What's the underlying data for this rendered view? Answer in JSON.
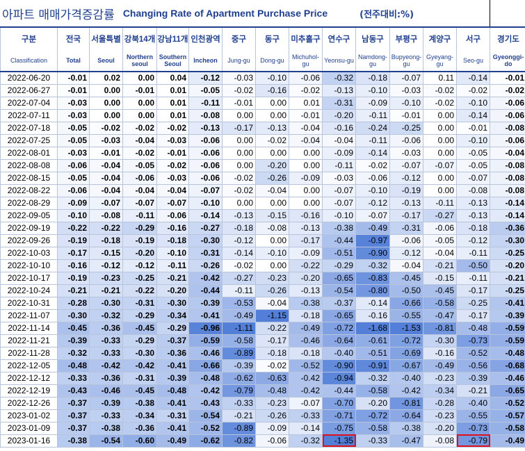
{
  "title": {
    "korean": "아파트 매매가격증감률",
    "english": "Changing Rate of Apartment Purchase Price",
    "unit": "(전주대비:%)"
  },
  "columns": [
    {
      "ko": "구분",
      "en": "Classification"
    },
    {
      "ko": "전국",
      "en": "Total"
    },
    {
      "ko": "서울특별",
      "en": "Seoul"
    },
    {
      "ko": "강북14개",
      "en": "Northern seoul"
    },
    {
      "ko": "강남11개",
      "en": "Southern Seoul"
    },
    {
      "ko": "인천광역",
      "en": "Incheon"
    },
    {
      "ko": "중구",
      "en": "Jung-gu"
    },
    {
      "ko": "동구",
      "en": "Dong-gu"
    },
    {
      "ko": "미추홀구",
      "en": "Michuhol-gu"
    },
    {
      "ko": "연수구",
      "en": "Yeonsu-gu"
    },
    {
      "ko": "남동구",
      "en": "Namdong-gu"
    },
    {
      "ko": "부평구",
      "en": "Bupyeong-gu"
    },
    {
      "ko": "계양구",
      "en": "Gyeyang-gu"
    },
    {
      "ko": "서구",
      "en": "Seo-gu"
    },
    {
      "ko": "경기도",
      "en": "Gyeonggi-do"
    }
  ],
  "rows": [
    {
      "date": "2022-06-20",
      "values": [
        "-0.01",
        "0.02",
        "0.00",
        "0.04",
        "-0.12",
        "-0.03",
        "-0.10",
        "-0.06",
        "-0.32",
        "-0.18",
        "-0.07",
        "0.11",
        "-0.14",
        "-0.01"
      ]
    },
    {
      "date": "2022-06-27",
      "values": [
        "-0.01",
        "0.00",
        "-0.01",
        "0.01",
        "-0.05",
        "-0.02",
        "-0.16",
        "-0.02",
        "-0.13",
        "-0.10",
        "-0.03",
        "-0.02",
        "-0.02",
        "-0.02"
      ]
    },
    {
      "date": "2022-07-04",
      "values": [
        "-0.03",
        "0.00",
        "0.00",
        "0.01",
        "-0.11",
        "-0.01",
        "0.00",
        "0.01",
        "-0.31",
        "-0.09",
        "-0.10",
        "-0.02",
        "-0.10",
        "-0.06"
      ]
    },
    {
      "date": "2022-07-11",
      "values": [
        "-0.03",
        "0.00",
        "0.00",
        "0.01",
        "-0.08",
        "0.00",
        "0.00",
        "-0.01",
        "-0.20",
        "-0.11",
        "-0.01",
        "0.00",
        "-0.14",
        "-0.06"
      ]
    },
    {
      "date": "2022-07-18",
      "values": [
        "-0.05",
        "-0.02",
        "-0.02",
        "-0.02",
        "-0.13",
        "-0.17",
        "-0.13",
        "-0.04",
        "-0.16",
        "-0.24",
        "-0.25",
        "0.00",
        "-0.01",
        "-0.08"
      ]
    },
    {
      "date": "2022-07-25",
      "values": [
        "-0.05",
        "-0.03",
        "-0.04",
        "-0.03",
        "-0.06",
        "0.00",
        "-0.02",
        "-0.04",
        "-0.04",
        "-0.11",
        "-0.06",
        "0.00",
        "-0.10",
        "-0.06"
      ]
    },
    {
      "date": "2022-08-01",
      "values": [
        "-0.03",
        "-0.01",
        "-0.02",
        "-0.01",
        "-0.06",
        "0.00",
        "0.00",
        "0.00",
        "-0.09",
        "-0.14",
        "-0.03",
        "0.00",
        "-0.05",
        "-0.04"
      ]
    },
    {
      "date": "2022-08-08",
      "values": [
        "-0.06",
        "-0.04",
        "-0.05",
        "-0.02",
        "-0.06",
        "0.00",
        "-0.20",
        "0.00",
        "-0.11",
        "-0.02",
        "-0.07",
        "-0.07",
        "-0.05",
        "-0.08"
      ]
    },
    {
      "date": "2022-08-15",
      "values": [
        "-0.05",
        "-0.04",
        "-0.06",
        "-0.03",
        "-0.06",
        "-0.02",
        "-0.26",
        "-0.09",
        "-0.03",
        "-0.06",
        "-0.12",
        "0.00",
        "-0.07",
        "-0.08"
      ]
    },
    {
      "date": "2022-08-22",
      "values": [
        "-0.06",
        "-0.04",
        "-0.04",
        "-0.04",
        "-0.07",
        "-0.02",
        "-0.04",
        "0.00",
        "-0.07",
        "-0.10",
        "-0.19",
        "0.00",
        "-0.08",
        "-0.08"
      ]
    },
    {
      "date": "2022-08-29",
      "values": [
        "-0.09",
        "-0.07",
        "-0.07",
        "-0.07",
        "-0.10",
        "0.00",
        "0.00",
        "0.00",
        "-0.07",
        "-0.12",
        "-0.13",
        "-0.11",
        "-0.13",
        "-0.14"
      ]
    },
    {
      "date": "2022-09-05",
      "values": [
        "-0.10",
        "-0.08",
        "-0.11",
        "-0.06",
        "-0.14",
        "-0.13",
        "-0.15",
        "-0.16",
        "-0.10",
        "-0.07",
        "-0.17",
        "-0.27",
        "-0.13",
        "-0.14"
      ]
    },
    {
      "date": "2022-09-19",
      "values": [
        "-0.22",
        "-0.22",
        "-0.29",
        "-0.16",
        "-0.27",
        "-0.18",
        "-0.08",
        "-0.13",
        "-0.38",
        "-0.49",
        "-0.31",
        "-0.06",
        "-0.18",
        "-0.36"
      ]
    },
    {
      "date": "2022-09-26",
      "values": [
        "-0.19",
        "-0.18",
        "-0.19",
        "-0.18",
        "-0.30",
        "-0.12",
        "0.00",
        "-0.17",
        "-0.44",
        "-0.97",
        "-0.06",
        "-0.05",
        "-0.12",
        "-0.30"
      ]
    },
    {
      "date": "2022-10-03",
      "values": [
        "-0.17",
        "-0.15",
        "-0.20",
        "-0.10",
        "-0.31",
        "-0.14",
        "-0.10",
        "-0.09",
        "-0.51",
        "-0.90",
        "-0.12",
        "-0.04",
        "-0.11",
        "-0.25"
      ]
    },
    {
      "date": "2022-10-10",
      "values": [
        "-0.16",
        "-0.12",
        "-0.12",
        "-0.11",
        "-0.26",
        "-0.02",
        "0.00",
        "-0.22",
        "-0.29",
        "-0.32",
        "-0.04",
        "-0.21",
        "-0.50",
        "-0.20"
      ]
    },
    {
      "date": "2022-10-17",
      "values": [
        "-0.19",
        "-0.23",
        "-0.25",
        "-0.21",
        "-0.42",
        "-0.27",
        "-0.23",
        "-0.20",
        "-0.65",
        "-0.83",
        "-0.45",
        "-0.15",
        "-0.11",
        "-0.21"
      ]
    },
    {
      "date": "2022-10-24",
      "values": [
        "-0.21",
        "-0.21",
        "-0.22",
        "-0.20",
        "-0.44",
        "-0.11",
        "-0.26",
        "-0.13",
        "-0.54",
        "-0.80",
        "-0.50",
        "-0.45",
        "-0.17",
        "-0.25"
      ]
    },
    {
      "date": "2022-10-31",
      "values": [
        "-0.28",
        "-0.30",
        "-0.31",
        "-0.30",
        "-0.39",
        "-0.53",
        "-0.04",
        "-0.38",
        "-0.37",
        "-0.14",
        "-0.66",
        "-0.58",
        "-0.25",
        "-0.41"
      ]
    },
    {
      "date": "2022-11-07",
      "values": [
        "-0.30",
        "-0.32",
        "-0.29",
        "-0.34",
        "-0.41",
        "-0.49",
        "-1.15",
        "-0.18",
        "-0.65",
        "-0.16",
        "-0.55",
        "-0.47",
        "-0.17",
        "-0.39"
      ]
    },
    {
      "date": "2022-11-14",
      "values": [
        "-0.45",
        "-0.36",
        "-0.45",
        "-0.29",
        "-0.96",
        "-1.11",
        "-0.22",
        "-0.49",
        "-0.72",
        "-1.68",
        "-1.53",
        "-0.81",
        "-0.48",
        "-0.59"
      ]
    },
    {
      "date": "2022-11-21",
      "values": [
        "-0.39",
        "-0.33",
        "-0.29",
        "-0.37",
        "-0.59",
        "-0.58",
        "-0.17",
        "-0.46",
        "-0.64",
        "-0.61",
        "-0.72",
        "-0.30",
        "-0.73",
        "-0.59"
      ]
    },
    {
      "date": "2022-11-28",
      "values": [
        "-0.32",
        "-0.33",
        "-0.30",
        "-0.36",
        "-0.46",
        "-0.89",
        "-0.18",
        "-0.18",
        "-0.40",
        "-0.51",
        "-0.69",
        "-0.16",
        "-0.52",
        "-0.48"
      ]
    },
    {
      "date": "2022-12-05",
      "values": [
        "-0.48",
        "-0.42",
        "-0.42",
        "-0.41",
        "-0.66",
        "-0.39",
        "-0.02",
        "-0.52",
        "-0.90",
        "-0.91",
        "-0.67",
        "-0.49",
        "-0.56",
        "-0.68"
      ]
    },
    {
      "date": "2022-12-12",
      "values": [
        "-0.33",
        "-0.36",
        "-0.31",
        "-0.39",
        "-0.48",
        "-0.62",
        "-0.63",
        "-0.42",
        "-0.94",
        "-0.32",
        "-0.40",
        "-0.23",
        "-0.39",
        "-0.46"
      ]
    },
    {
      "date": "2022-12-19",
      "values": [
        "-0.43",
        "-0.46",
        "-0.45",
        "-0.48",
        "-0.42",
        "-0.79",
        "-0.48",
        "-0.42",
        "-0.44",
        "-0.58",
        "-0.42",
        "-0.34",
        "-0.21",
        "-0.65"
      ]
    },
    {
      "date": "2022-12-26",
      "values": [
        "-0.37",
        "-0.39",
        "-0.38",
        "-0.41",
        "-0.43",
        "-0.33",
        "-0.23",
        "-0.07",
        "-0.70",
        "-0.20",
        "-0.81",
        "-0.28",
        "-0.40",
        "-0.52"
      ]
    },
    {
      "date": "2023-01-02",
      "values": [
        "-0.37",
        "-0.33",
        "-0.34",
        "-0.31",
        "-0.54",
        "-0.21",
        "-0.26",
        "-0.33",
        "-0.71",
        "-0.72",
        "-0.64",
        "-0.23",
        "-0.55",
        "-0.57"
      ]
    },
    {
      "date": "2023-01-09",
      "values": [
        "-0.37",
        "-0.38",
        "-0.36",
        "-0.41",
        "-0.52",
        "-0.89",
        "-0.09",
        "-0.14",
        "-0.75",
        "-0.58",
        "-0.38",
        "-0.20",
        "-0.73",
        "-0.58"
      ]
    },
    {
      "date": "2023-01-16",
      "values": [
        "-0.38",
        "-0.54",
        "-0.60",
        "-0.49",
        "-0.62",
        "-0.82",
        "-0.06",
        "-0.32",
        "-1.35",
        "-0.33",
        "-0.47",
        "-0.08",
        "-0.79",
        "-0.49"
      ]
    }
  ],
  "highlighted_cells": [
    {
      "date": "2023-01-16",
      "column": "연수구"
    },
    {
      "date": "2023-01-16",
      "column": "서구"
    }
  ],
  "heat_color": "#4a78d6"
}
